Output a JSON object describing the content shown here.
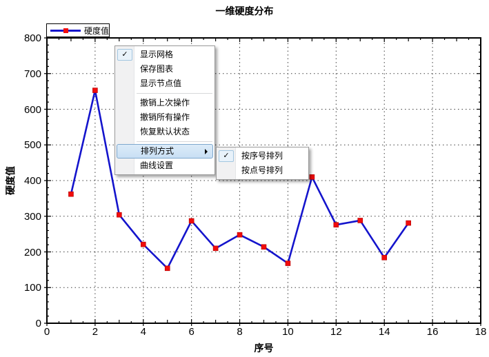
{
  "title": "一维硬度分布",
  "legend": {
    "label": "硬度值"
  },
  "axes": {
    "x_label": "序号",
    "y_label": "硬度值"
  },
  "colors": {
    "line": "#1414CC",
    "marker": "#F10C0C",
    "marker_edge": "#B00000",
    "grid_dots": "#3C3C3C",
    "axis": "#000000",
    "menu_border": "#9A9A9A",
    "menu_gutter": "#F1F1F2",
    "menu_highlight_bg": "#CEE3F6",
    "menu_highlight_border": "#7DA7CD",
    "checkbox_bg": "#E8F2FA",
    "checkbox_border": "#A2C6E0"
  },
  "chart_data": {
    "type": "line",
    "title": "一维硬度分布",
    "xlabel": "序号",
    "ylabel": "硬度值",
    "xlim": [
      0,
      18
    ],
    "ylim": [
      0,
      800
    ],
    "xticks": [
      0,
      2,
      4,
      6,
      8,
      10,
      12,
      14,
      16,
      18
    ],
    "yticks": [
      0,
      100,
      200,
      300,
      400,
      500,
      600,
      700,
      800
    ],
    "x_minor_step": 0.5,
    "y_minor_step": 20,
    "grid": true,
    "legend_position": "top-left",
    "series": [
      {
        "name": "硬度值",
        "marker": "square",
        "x": [
          1,
          2,
          3,
          4,
          5,
          6,
          7,
          8,
          9,
          10,
          11,
          12,
          13,
          14,
          15
        ],
        "values": [
          362,
          653,
          304,
          221,
          154,
          287,
          210,
          248,
          214,
          168,
          410,
          276,
          288,
          184,
          281
        ]
      }
    ]
  },
  "context_menu": {
    "items": [
      {
        "label": "显示网格",
        "checked": true
      },
      {
        "label": "保存图表"
      },
      {
        "label": "显示节点值"
      },
      {
        "type": "separator"
      },
      {
        "label": "撤销上次操作"
      },
      {
        "label": "撤销所有操作"
      },
      {
        "label": "恢复默认状态"
      },
      {
        "type": "separator"
      },
      {
        "label": "排列方式",
        "highlighted": true,
        "has_submenu": true
      },
      {
        "label": "曲线设置"
      }
    ],
    "checkmark": "✓"
  },
  "submenu": {
    "items": [
      {
        "label": "按序号排列",
        "checked": true
      },
      {
        "label": "按点号排列"
      }
    ],
    "checkmark": "✓"
  }
}
